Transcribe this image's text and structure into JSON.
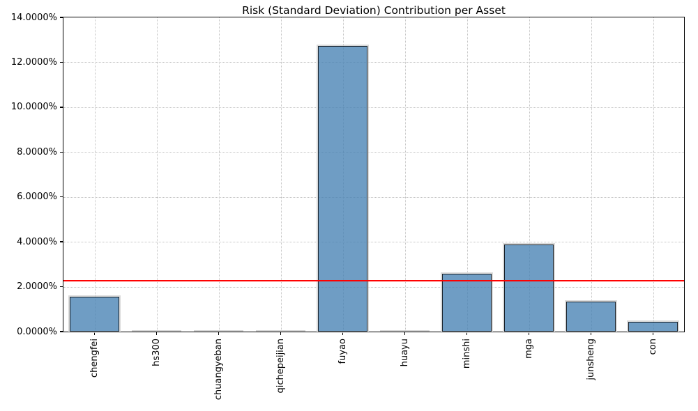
{
  "figure": {
    "title": "Risk (Standard Deviation) Contribution per Asset"
  },
  "chart_data": {
    "type": "bar",
    "title": "Risk (Standard Deviation) Contribution per Asset",
    "categories": [
      "chengfei",
      "hs300",
      "chuangyeban",
      "qichepeijian",
      "fuyao",
      "huayu",
      "minshi",
      "mga",
      "junsheng",
      "con"
    ],
    "values": [
      1.56,
      0.01,
      0.01,
      0.01,
      12.73,
      0.01,
      2.57,
      3.89,
      1.35,
      0.43
    ],
    "unit": "%",
    "xlabel": "",
    "ylabel": "",
    "ylim": [
      0,
      14
    ],
    "ytick_step": 2,
    "ytick_labels": [
      "0.0000%",
      "2.0000%",
      "4.0000%",
      "6.0000%",
      "8.0000%",
      "10.0000%",
      "12.0000%",
      "14.0000%"
    ],
    "reference_line": {
      "value": 2.27,
      "color": "#ff0000"
    },
    "grid": true,
    "legend_position": "none",
    "bar_fill_base": "#4682b4",
    "bar_fill_alpha": 0.78,
    "bar_edge_color": "#333333",
    "grid_color": "#c3c3c3",
    "bar_width_fraction": 0.8
  }
}
